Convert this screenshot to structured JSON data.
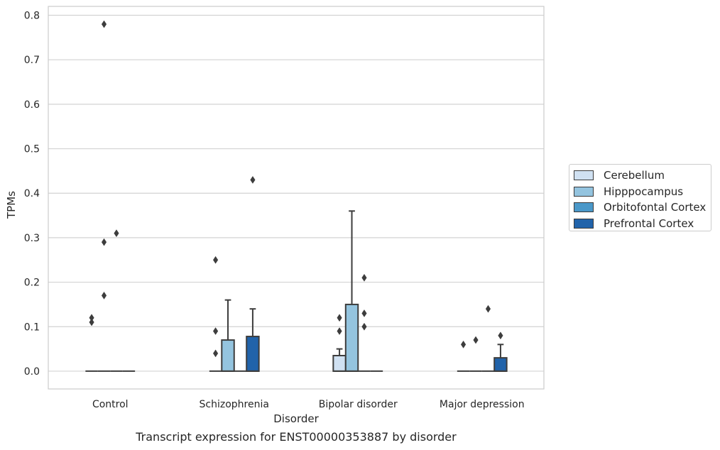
{
  "chart_data": {
    "type": "box",
    "categories": [
      "Control",
      "Schizophrenia",
      "Bipolar disorder",
      "Major depression"
    ],
    "xlabel": "Disorder",
    "ylabel": "TPMs",
    "caption": "Transcript expression for ENST00000353887 by disorder",
    "ylim": [
      -0.04,
      0.82
    ],
    "yticks": [
      "0.0",
      "0.1",
      "0.2",
      "0.3",
      "0.4",
      "0.5",
      "0.6",
      "0.7",
      "0.8"
    ],
    "grid": "horizontal",
    "legend_position": "right",
    "series": [
      {
        "name": "Cerebellum",
        "color": "#d0e1f2",
        "boxes": [
          {
            "q1": 0,
            "median": 0,
            "q3": 0,
            "whisker_low": 0,
            "whisker_high": 0,
            "outliers": [
              0.11,
              0.12
            ]
          },
          {
            "q1": 0,
            "median": 0,
            "q3": 0,
            "whisker_low": 0,
            "whisker_high": 0,
            "outliers": [
              0.04,
              0.09,
              0.25
            ]
          },
          {
            "q1": 0,
            "median": 0,
            "q3": 0.035,
            "whisker_low": 0,
            "whisker_high": 0.05,
            "outliers": [
              0.09,
              0.12
            ]
          },
          {
            "q1": 0,
            "median": 0,
            "q3": 0,
            "whisker_low": 0,
            "whisker_high": 0,
            "outliers": [
              0.06
            ]
          }
        ]
      },
      {
        "name": "Hipppocampus",
        "color": "#94c4df",
        "boxes": [
          {
            "q1": 0,
            "median": 0,
            "q3": 0,
            "whisker_low": 0,
            "whisker_high": 0,
            "outliers": [
              0.17,
              0.29,
              0.78
            ]
          },
          {
            "q1": 0,
            "median": 0,
            "q3": 0.07,
            "whisker_low": 0,
            "whisker_high": 0.16,
            "outliers": []
          },
          {
            "q1": 0,
            "median": 0,
            "q3": 0.15,
            "whisker_low": 0,
            "whisker_high": 0.36,
            "outliers": []
          },
          {
            "q1": 0,
            "median": 0,
            "q3": 0,
            "whisker_low": 0,
            "whisker_high": 0,
            "outliers": [
              0.07
            ]
          }
        ]
      },
      {
        "name": "Orbitofontal Cortex",
        "color": "#4a98c9",
        "boxes": [
          {
            "q1": 0,
            "median": 0,
            "q3": 0,
            "whisker_low": 0,
            "whisker_high": 0,
            "outliers": [
              0.31
            ]
          },
          {
            "q1": 0,
            "median": 0,
            "q3": 0,
            "whisker_low": 0,
            "whisker_high": 0,
            "outliers": []
          },
          {
            "q1": 0,
            "median": 0,
            "q3": 0,
            "whisker_low": 0,
            "whisker_high": 0,
            "outliers": [
              0.1,
              0.13,
              0.21
            ]
          },
          {
            "q1": 0,
            "median": 0,
            "q3": 0,
            "whisker_low": 0,
            "whisker_high": 0,
            "outliers": [
              0.14
            ]
          }
        ]
      },
      {
        "name": "Prefrontal Cortex",
        "color": "#2163aa",
        "boxes": [
          {
            "q1": 0,
            "median": 0,
            "q3": 0,
            "whisker_low": 0,
            "whisker_high": 0,
            "outliers": []
          },
          {
            "q1": 0,
            "median": 0,
            "q3": 0.078,
            "whisker_low": 0,
            "whisker_high": 0.14,
            "outliers": [
              0.43
            ]
          },
          {
            "q1": 0,
            "median": 0,
            "q3": 0,
            "whisker_low": 0,
            "whisker_high": 0,
            "outliers": []
          },
          {
            "q1": 0,
            "median": 0,
            "q3": 0.03,
            "whisker_low": 0,
            "whisker_high": 0.06,
            "outliers": [
              0.08
            ]
          }
        ]
      }
    ]
  }
}
